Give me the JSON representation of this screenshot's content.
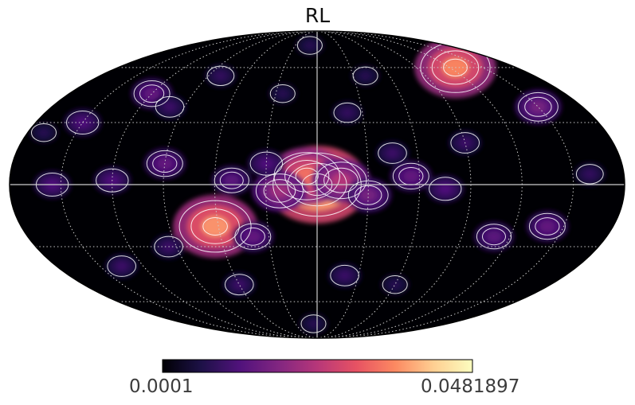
{
  "title": "RL",
  "projection": "mollweide",
  "colormap": {
    "name": "magma",
    "min_label": "0.0001",
    "max_label": "0.0481897",
    "min": 0.0001,
    "max": 0.0481897,
    "stops": [
      "#000004",
      "#1d1147",
      "#51127c",
      "#822681",
      "#b73779",
      "#e75263",
      "#fc8961",
      "#fecf92",
      "#fcfdbf"
    ]
  },
  "graticule": {
    "meridian_step_deg": 30,
    "parallel_step_deg": 30,
    "color": "#cccccc"
  },
  "contour_color": "#ffffff",
  "sources": [
    {
      "lon": 0,
      "lat": 0,
      "level": 1.0
    },
    {
      "lon": 6,
      "lat": 4,
      "level": 0.7
    },
    {
      "lon": -14,
      "lat": 2,
      "level": 0.5
    },
    {
      "lon": 22,
      "lat": -3,
      "level": 0.45
    },
    {
      "lon": -30,
      "lat": -5,
      "level": 0.35
    },
    {
      "lon": -55,
      "lat": 4,
      "level": 0.3
    },
    {
      "lon": -75,
      "lat": -2,
      "level": 0.25
    },
    {
      "lon": 50,
      "lat": 2,
      "level": 0.28
    },
    {
      "lon": 30,
      "lat": 10,
      "level": 0.25
    },
    {
      "lon": -45,
      "lat": 15,
      "level": 0.2
    },
    {
      "lon": -125,
      "lat": 60,
      "level": 0.75
    },
    {
      "lon": -150,
      "lat": 38,
      "level": 0.35
    },
    {
      "lon": 62,
      "lat": -20,
      "level": 0.78
    },
    {
      "lon": 40,
      "lat": -25,
      "level": 0.3
    },
    {
      "lon": 90,
      "lat": 10,
      "level": 0.3
    },
    {
      "lon": 120,
      "lat": 2,
      "level": 0.25
    },
    {
      "lon": 155,
      "lat": 0,
      "level": 0.25
    },
    {
      "lon": -140,
      "lat": -20,
      "level": 0.3
    },
    {
      "lon": -110,
      "lat": -25,
      "level": 0.28
    },
    {
      "lon": -90,
      "lat": 20,
      "level": 0.2
    },
    {
      "lon": 120,
      "lat": 45,
      "level": 0.3
    },
    {
      "lon": 150,
      "lat": 30,
      "level": 0.25
    },
    {
      "lon": -20,
      "lat": -45,
      "level": 0.2
    },
    {
      "lon": 5,
      "lat": -75,
      "level": 0.15
    },
    {
      "lon": 60,
      "lat": -50,
      "level": 0.2
    },
    {
      "lon": 135,
      "lat": -40,
      "level": 0.2
    },
    {
      "lon": -60,
      "lat": -50,
      "level": 0.15
    },
    {
      "lon": 100,
      "lat": 38,
      "level": 0.2
    },
    {
      "lon": 80,
      "lat": 55,
      "level": 0.18
    },
    {
      "lon": 10,
      "lat": 75,
      "level": 0.15
    },
    {
      "lon": -160,
      "lat": 5,
      "level": 0.18
    },
    {
      "lon": 95,
      "lat": -30,
      "level": 0.2
    },
    {
      "lon": 170,
      "lat": 25,
      "level": 0.15
    },
    {
      "lon": -20,
      "lat": 35,
      "level": 0.18
    },
    {
      "lon": -40,
      "lat": 55,
      "level": 0.15
    },
    {
      "lon": 25,
      "lat": 45,
      "level": 0.15
    }
  ]
}
